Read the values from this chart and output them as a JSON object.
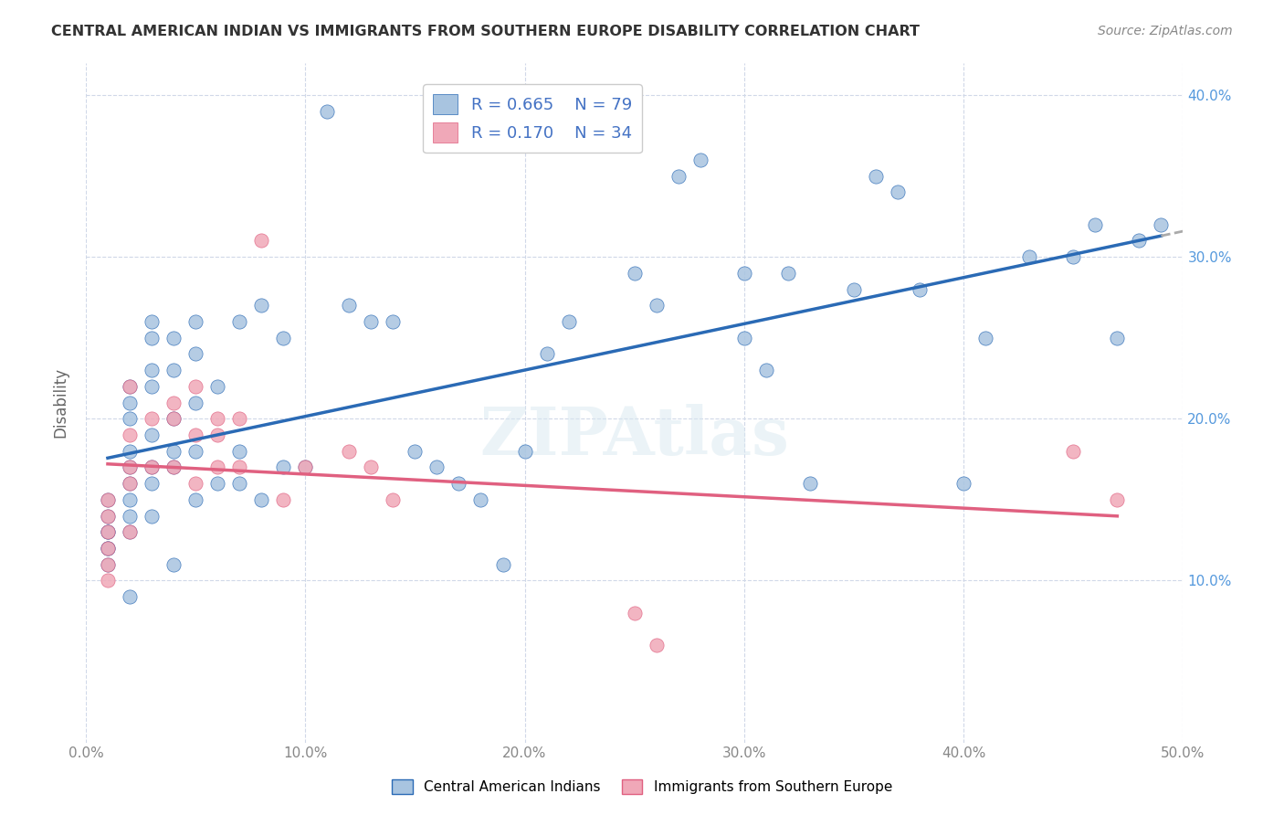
{
  "title": "CENTRAL AMERICAN INDIAN VS IMMIGRANTS FROM SOUTHERN EUROPE DISABILITY CORRELATION CHART",
  "source": "Source: ZipAtlas.com",
  "xlabel_bottom": "",
  "ylabel": "Disability",
  "xlim": [
    0.0,
    0.5
  ],
  "ylim": [
    0.0,
    0.42
  ],
  "xticks": [
    0.0,
    0.1,
    0.2,
    0.3,
    0.4,
    0.5
  ],
  "yticks": [
    0.1,
    0.2,
    0.3,
    0.4
  ],
  "xticklabels": [
    "0.0%",
    "10.0%",
    "20.0%",
    "30.0%",
    "40.0%",
    "50.0%"
  ],
  "yticklabels": [
    "10.0%",
    "20.0%",
    "30.0%",
    "40.0%"
  ],
  "watermark": "ZIPAtlas",
  "series1_label": "Central American Indians",
  "series1_R": "0.665",
  "series1_N": "79",
  "series1_color": "#a8c4e0",
  "series1_line_color": "#2a6ab5",
  "series2_label": "Immigrants from Southern Europe",
  "series2_R": "0.170",
  "series2_N": "34",
  "series2_color": "#f0a8b8",
  "series2_line_color": "#e06080",
  "legend_R_color": "#4472c4",
  "background_color": "#ffffff",
  "grid_color": "#d0d8e8",
  "blue_scatter_x": [
    0.01,
    0.01,
    0.01,
    0.01,
    0.01,
    0.01,
    0.01,
    0.02,
    0.02,
    0.02,
    0.02,
    0.02,
    0.02,
    0.02,
    0.02,
    0.02,
    0.02,
    0.03,
    0.03,
    0.03,
    0.03,
    0.03,
    0.03,
    0.03,
    0.03,
    0.04,
    0.04,
    0.04,
    0.04,
    0.04,
    0.04,
    0.05,
    0.05,
    0.05,
    0.05,
    0.05,
    0.06,
    0.06,
    0.07,
    0.07,
    0.07,
    0.08,
    0.08,
    0.09,
    0.09,
    0.1,
    0.11,
    0.12,
    0.13,
    0.14,
    0.15,
    0.16,
    0.17,
    0.18,
    0.19,
    0.2,
    0.21,
    0.22,
    0.25,
    0.26,
    0.27,
    0.28,
    0.3,
    0.3,
    0.31,
    0.32,
    0.33,
    0.35,
    0.36,
    0.37,
    0.38,
    0.4,
    0.41,
    0.43,
    0.45,
    0.46,
    0.47,
    0.48,
    0.49
  ],
  "blue_scatter_y": [
    0.15,
    0.14,
    0.13,
    0.13,
    0.12,
    0.12,
    0.11,
    0.22,
    0.21,
    0.2,
    0.18,
    0.17,
    0.16,
    0.15,
    0.14,
    0.13,
    0.09,
    0.26,
    0.25,
    0.23,
    0.22,
    0.19,
    0.17,
    0.16,
    0.14,
    0.25,
    0.23,
    0.2,
    0.18,
    0.17,
    0.11,
    0.26,
    0.24,
    0.21,
    0.18,
    0.15,
    0.22,
    0.16,
    0.26,
    0.18,
    0.16,
    0.27,
    0.15,
    0.25,
    0.17,
    0.17,
    0.39,
    0.27,
    0.26,
    0.26,
    0.18,
    0.17,
    0.16,
    0.15,
    0.11,
    0.18,
    0.24,
    0.26,
    0.29,
    0.27,
    0.35,
    0.36,
    0.29,
    0.25,
    0.23,
    0.29,
    0.16,
    0.28,
    0.35,
    0.34,
    0.28,
    0.16,
    0.25,
    0.3,
    0.3,
    0.32,
    0.25,
    0.31,
    0.32
  ],
  "pink_scatter_x": [
    0.01,
    0.01,
    0.01,
    0.01,
    0.01,
    0.01,
    0.02,
    0.02,
    0.02,
    0.02,
    0.02,
    0.03,
    0.03,
    0.04,
    0.04,
    0.04,
    0.05,
    0.05,
    0.05,
    0.06,
    0.06,
    0.06,
    0.07,
    0.07,
    0.08,
    0.09,
    0.1,
    0.12,
    0.13,
    0.14,
    0.25,
    0.26,
    0.45,
    0.47
  ],
  "pink_scatter_y": [
    0.15,
    0.14,
    0.13,
    0.12,
    0.11,
    0.1,
    0.22,
    0.19,
    0.17,
    0.16,
    0.13,
    0.2,
    0.17,
    0.21,
    0.2,
    0.17,
    0.22,
    0.19,
    0.16,
    0.2,
    0.19,
    0.17,
    0.2,
    0.17,
    0.31,
    0.15,
    0.17,
    0.18,
    0.17,
    0.15,
    0.08,
    0.06,
    0.18,
    0.15
  ]
}
